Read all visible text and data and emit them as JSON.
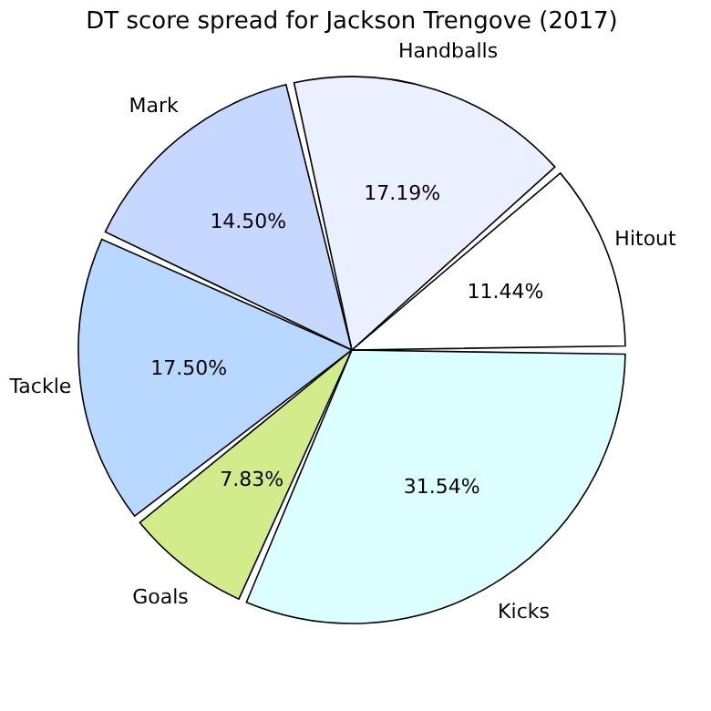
{
  "chart_data": {
    "type": "pie",
    "title": "DT score spread for Jackson Trengove (2017)",
    "categories": [
      "Hitout",
      "Handballs",
      "Mark",
      "Tackle",
      "Goals",
      "Kicks"
    ],
    "values": [
      11.44,
      17.19,
      14.5,
      17.5,
      7.83,
      31.54
    ],
    "value_labels": [
      "11.44%",
      "17.19%",
      "14.50%",
      "17.50%",
      "7.83%",
      "31.54%"
    ],
    "colors": [
      "#ffffff",
      "#eaf0ff",
      "#c6d8ff",
      "#b8d8ff",
      "#d2ec8c",
      "#dcffff"
    ],
    "legend": false
  }
}
